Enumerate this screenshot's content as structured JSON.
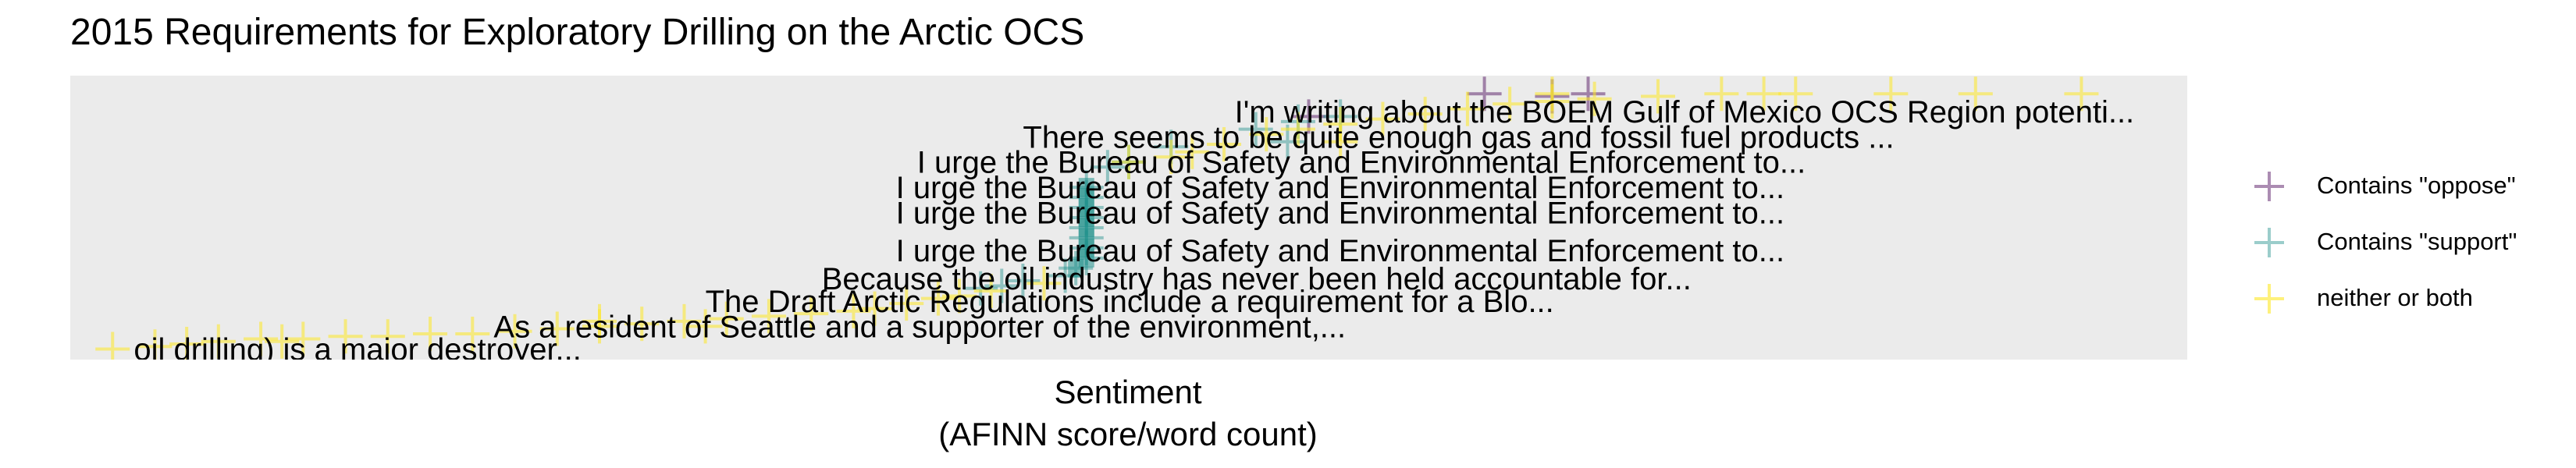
{
  "chart_data": {
    "type": "scatter",
    "title": "2015 Requirements for Exploratory Drilling on the Arctic OCS",
    "xlabel": [
      "Sentiment",
      "(AFINN score/word count)"
    ],
    "ylabel": "",
    "grid": false,
    "legend_position": "right",
    "legend": [
      {
        "label": "Contains \"oppose\"",
        "color": "#440154"
      },
      {
        "label": "Contains \"support\"",
        "color": "#21918c"
      },
      {
        "label": "neither or both",
        "color": "#fde725"
      }
    ],
    "annotations": [
      {
        "text": "I'm writing about the BOEM Gulf of Mexico OCS Region potenti...",
        "x": 0.55,
        "y": 0.92
      },
      {
        "text": "There seems to be quite enough gas and fossil fuel products ...",
        "x": 0.45,
        "y": 0.82
      },
      {
        "text": "I urge the Bureau of Safety and Environmental Enforcement to...",
        "x": 0.4,
        "y": 0.72
      },
      {
        "text": "I urge the Bureau of Safety and Environmental Enforcement to...",
        "x": 0.39,
        "y": 0.62
      },
      {
        "text": "I urge the Bureau of Safety and Environmental Enforcement to...",
        "x": 0.39,
        "y": 0.52
      },
      {
        "text": "I urge the Bureau of Safety and Environmental Enforcement to...",
        "x": 0.39,
        "y": 0.37
      },
      {
        "text": "Because the oil industry has never been held accountable for...",
        "x": 0.355,
        "y": 0.26
      },
      {
        "text": "The Draft Arctic Regulations include a requirement for a Blo...",
        "x": 0.3,
        "y": 0.17
      },
      {
        "text": "As a resident of Seattle and a supporter of the environment,...",
        "x": 0.2,
        "y": 0.07
      },
      {
        "text": "oil drilling) is a major destroyer...",
        "x": 0.03,
        "y": -0.02
      }
    ],
    "xlim": [
      0,
      1
    ],
    "ylim": [
      0,
      1
    ],
    "series": [
      {
        "name": "Contains \"oppose\"",
        "color": "#440154",
        "points": [
          [
            0.668,
            0.99
          ],
          [
            0.717,
            0.99
          ],
          [
            0.7,
            0.98
          ],
          [
            0.585,
            0.9
          ]
        ]
      },
      {
        "name": "Contains \"support\"",
        "color": "#21918c",
        "points": [
          [
            0.56,
            0.85
          ],
          [
            0.575,
            0.8
          ],
          [
            0.52,
            0.78
          ],
          [
            0.5,
            0.72
          ],
          [
            0.49,
            0.7
          ],
          [
            0.48,
            0.62
          ],
          [
            0.48,
            0.58
          ],
          [
            0.48,
            0.54
          ],
          [
            0.48,
            0.5
          ],
          [
            0.48,
            0.46
          ],
          [
            0.48,
            0.42
          ],
          [
            0.48,
            0.38
          ],
          [
            0.48,
            0.34
          ],
          [
            0.475,
            0.3
          ],
          [
            0.47,
            0.27
          ],
          [
            0.45,
            0.25
          ],
          [
            0.44,
            0.23
          ],
          [
            0.43,
            0.22
          ],
          [
            0.58,
            0.88
          ],
          [
            0.6,
            0.9
          ]
        ]
      },
      {
        "name": "neither or both",
        "color": "#fde725",
        "points": [
          [
            0.02,
            -0.02
          ],
          [
            0.04,
            -0.01
          ],
          [
            0.055,
            0.0
          ],
          [
            0.07,
            0.01
          ],
          [
            0.09,
            0.02
          ],
          [
            0.11,
            0.02
          ],
          [
            0.13,
            0.03
          ],
          [
            0.15,
            0.03
          ],
          [
            0.17,
            0.04
          ],
          [
            0.19,
            0.04
          ],
          [
            0.21,
            0.05
          ],
          [
            0.23,
            0.06
          ],
          [
            0.25,
            0.07
          ],
          [
            0.27,
            0.08
          ],
          [
            0.29,
            0.09
          ],
          [
            0.31,
            0.1
          ],
          [
            0.33,
            0.11
          ],
          [
            0.35,
            0.12
          ],
          [
            0.37,
            0.13
          ],
          [
            0.38,
            0.14
          ],
          [
            0.395,
            0.16
          ],
          [
            0.41,
            0.18
          ],
          [
            0.42,
            0.19
          ],
          [
            0.435,
            0.21
          ],
          [
            0.46,
            0.24
          ],
          [
            0.52,
            0.74
          ],
          [
            0.53,
            0.76
          ],
          [
            0.545,
            0.79
          ],
          [
            0.565,
            0.83
          ],
          [
            0.58,
            0.85
          ],
          [
            0.6,
            0.87
          ],
          [
            0.62,
            0.89
          ],
          [
            0.64,
            0.91
          ],
          [
            0.66,
            0.93
          ],
          [
            0.68,
            0.95
          ],
          [
            0.7,
            0.96
          ],
          [
            0.72,
            0.97
          ],
          [
            0.75,
            0.98
          ],
          [
            0.78,
            0.99
          ],
          [
            0.8,
            0.99
          ],
          [
            0.815,
            0.99
          ],
          [
            0.9,
            0.99
          ],
          [
            0.95,
            0.99
          ],
          [
            0.6,
            0.8
          ],
          [
            0.5,
            0.72
          ],
          [
            0.3,
            0.07
          ],
          [
            0.1,
            0.01
          ],
          [
            0.25,
            0.09
          ],
          [
            0.7,
            0.99
          ],
          [
            0.86,
            0.99
          ]
        ]
      }
    ]
  }
}
